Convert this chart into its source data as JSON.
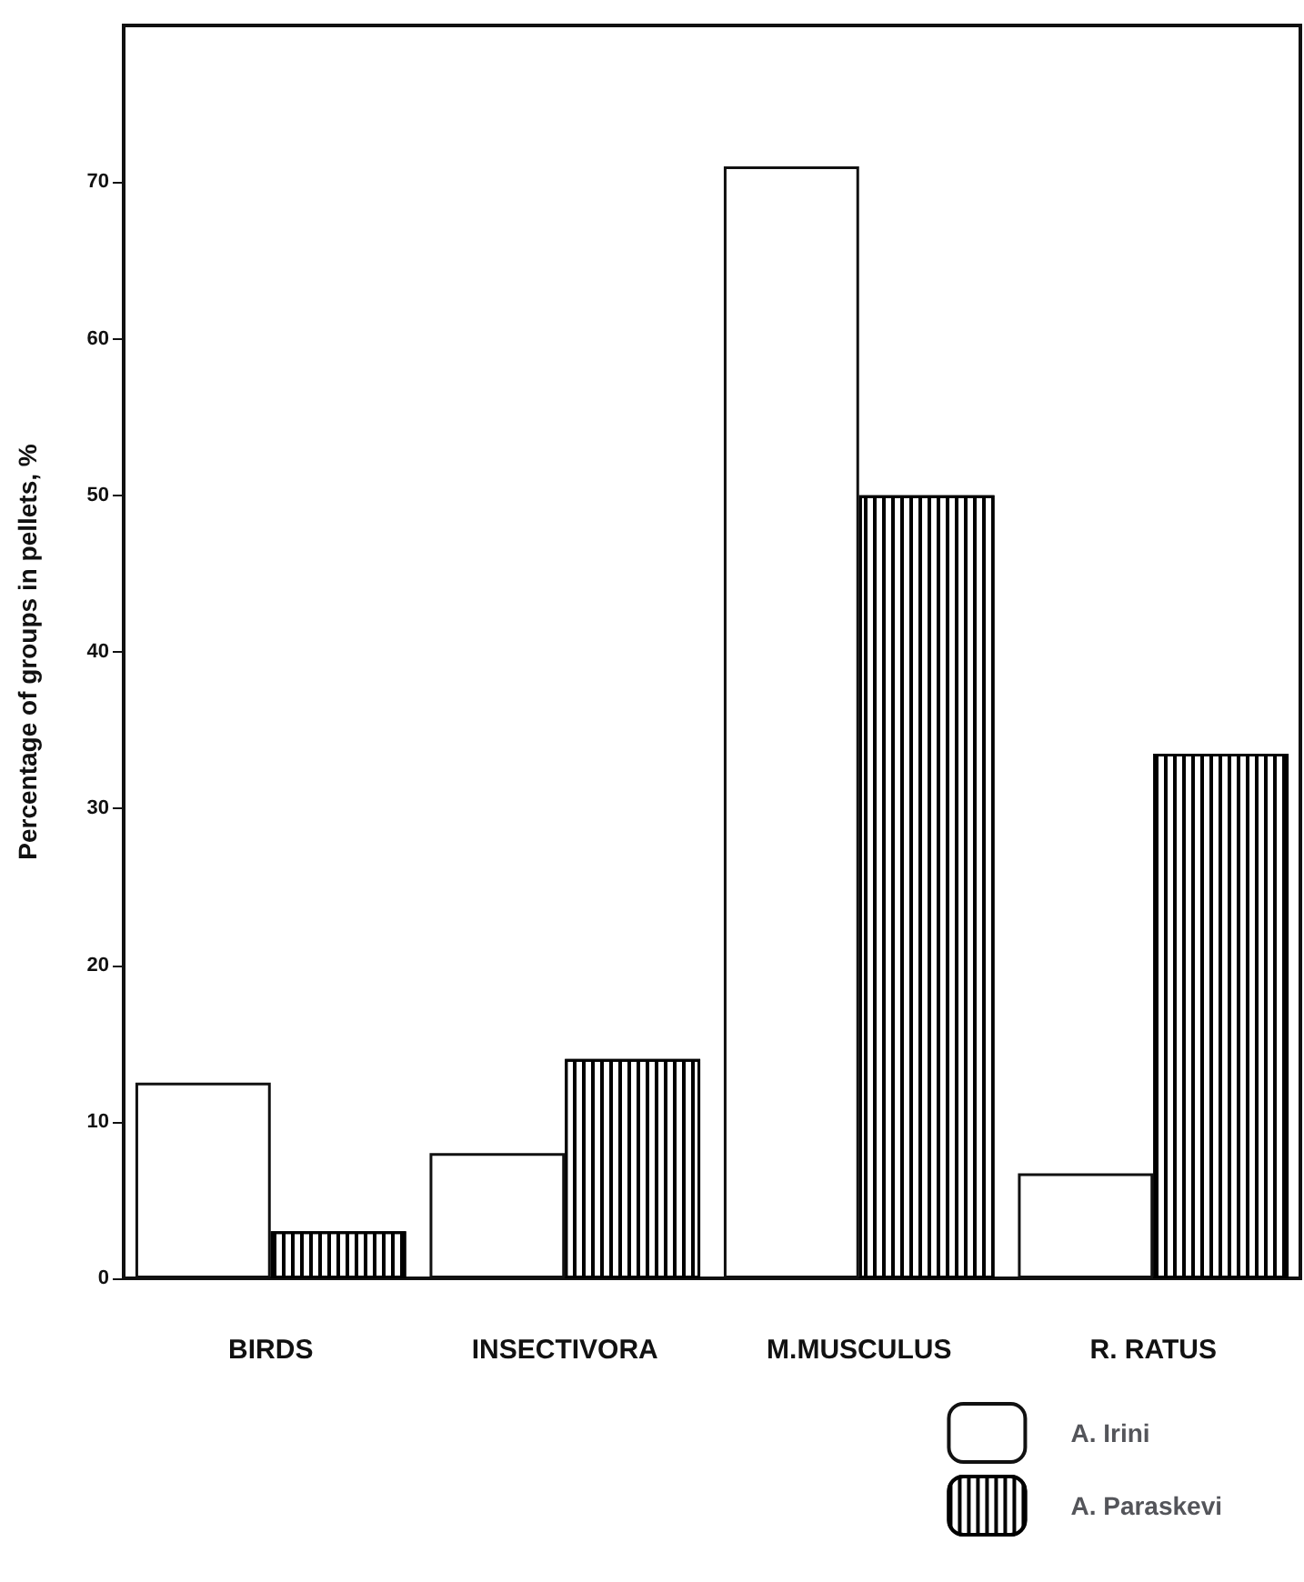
{
  "chart_data": {
    "type": "bar",
    "ylabel": "Percentage of groups in pellets, %",
    "categories": [
      "BIRDS",
      "INSECTIVORA",
      "M.MUSCULUS",
      "R. RATUS"
    ],
    "series": [
      {
        "name": "A. Irini",
        "color": "#ffffff",
        "values": [
          12.5,
          8,
          71,
          6.7
        ]
      },
      {
        "name": "A. Paraskevi",
        "color": "#000000",
        "values": [
          3,
          14,
          50,
          33.5
        ]
      }
    ],
    "ylim": [
      0,
      80
    ],
    "yticks": [
      0,
      10,
      20,
      30,
      40,
      50,
      60,
      70
    ],
    "grid": false,
    "legend": "bottom right"
  }
}
